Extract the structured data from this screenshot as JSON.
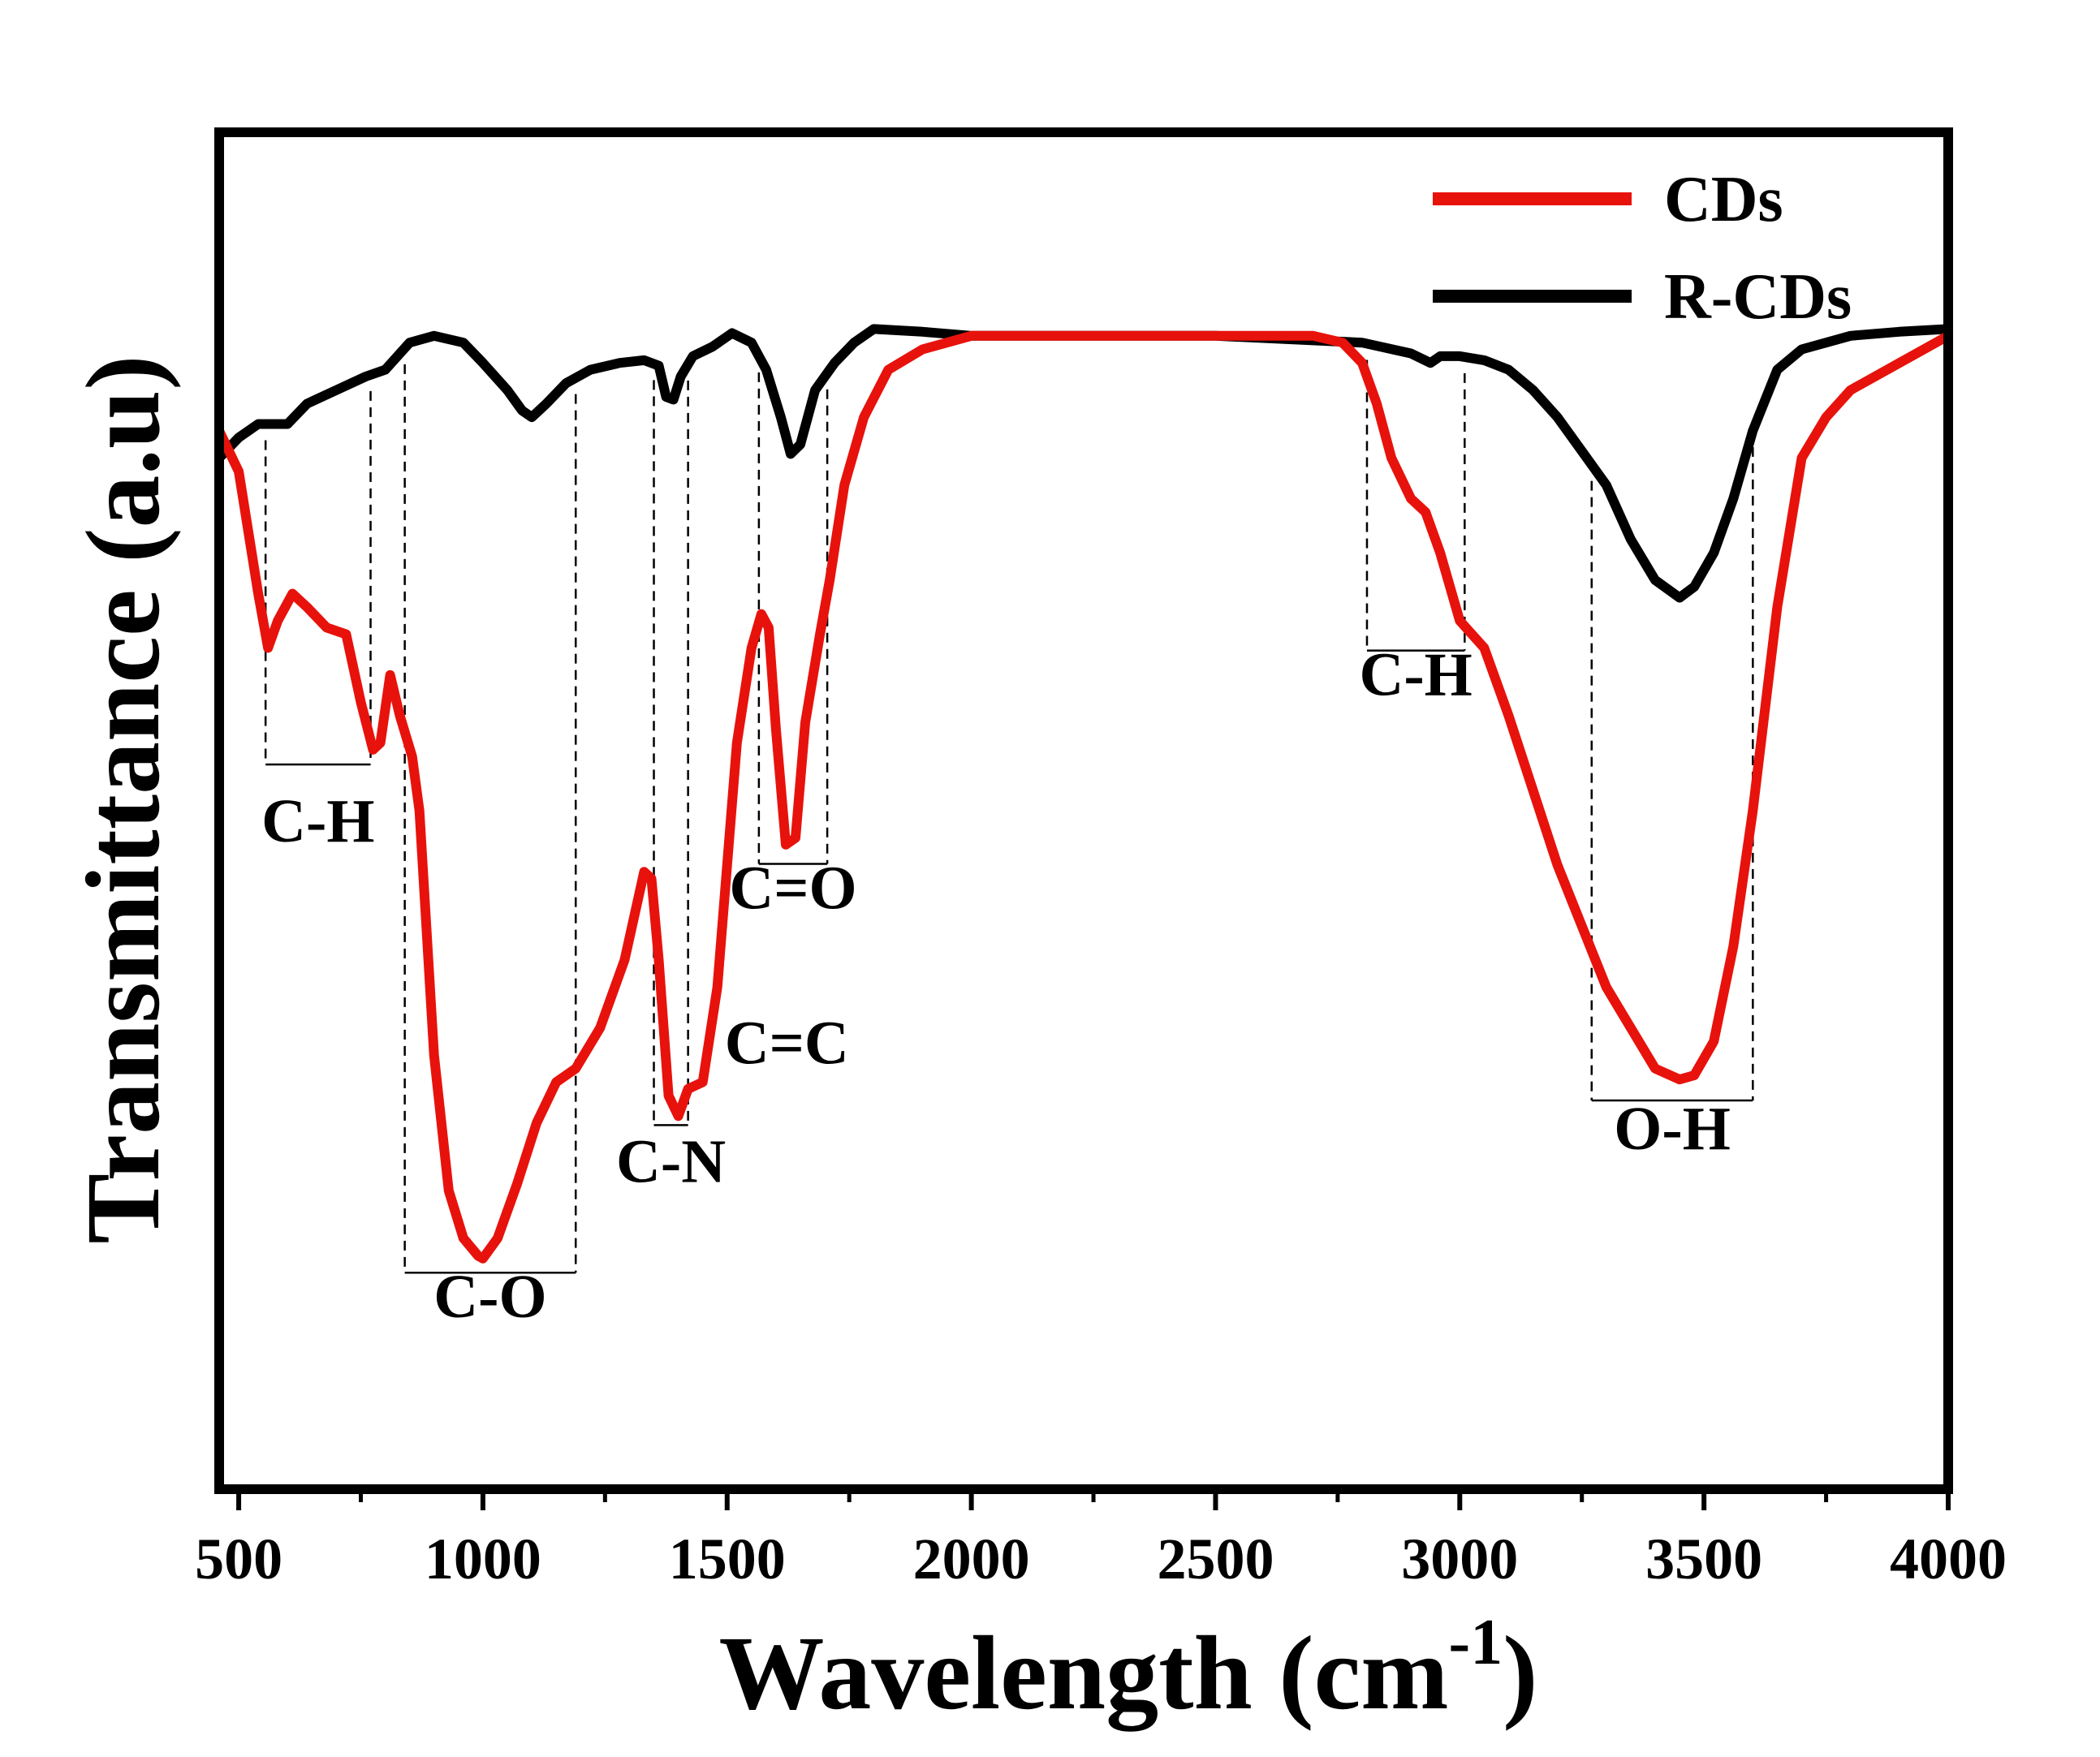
{
  "chart_data": {
    "type": "line",
    "xlabel": "Wavelength (cm",
    "xlabel_sup": "-1",
    "xlabel_close": ")",
    "ylabel": "Transmittance (a.u)",
    "xlim": [
      460,
      4000
    ],
    "ylim": [
      0,
      100
    ],
    "x_ticks": [
      500,
      1000,
      1500,
      2000,
      2500,
      3000,
      3500,
      4000
    ],
    "y_ticks_shown": false,
    "legend_position": "top-right",
    "series": [
      {
        "name": "CDs",
        "color": "#e8120c",
        "points": [
          [
            460,
            78
          ],
          [
            500,
            75
          ],
          [
            540,
            66
          ],
          [
            560,
            62
          ],
          [
            580,
            64
          ],
          [
            610,
            66
          ],
          [
            640,
            65
          ],
          [
            680,
            63.5
          ],
          [
            720,
            63
          ],
          [
            750,
            58
          ],
          [
            775,
            54.5
          ],
          [
            790,
            55
          ],
          [
            810,
            60
          ],
          [
            830,
            57
          ],
          [
            855,
            54
          ],
          [
            870,
            50
          ],
          [
            900,
            32
          ],
          [
            930,
            22
          ],
          [
            960,
            18.5
          ],
          [
            990,
            17.2
          ],
          [
            1000,
            17
          ],
          [
            1030,
            18.5
          ],
          [
            1070,
            22.5
          ],
          [
            1110,
            27
          ],
          [
            1150,
            30
          ],
          [
            1190,
            31
          ],
          [
            1240,
            34
          ],
          [
            1290,
            39
          ],
          [
            1330,
            45.5
          ],
          [
            1345,
            45
          ],
          [
            1360,
            39
          ],
          [
            1380,
            29
          ],
          [
            1400,
            27.5
          ],
          [
            1420,
            29.5
          ],
          [
            1450,
            30
          ],
          [
            1480,
            37
          ],
          [
            1520,
            55
          ],
          [
            1550,
            62
          ],
          [
            1570,
            64.5
          ],
          [
            1585,
            63.5
          ],
          [
            1600,
            56
          ],
          [
            1620,
            47.5
          ],
          [
            1640,
            48
          ],
          [
            1660,
            56.5
          ],
          [
            1690,
            63
          ],
          [
            1710,
            67
          ],
          [
            1740,
            74
          ],
          [
            1780,
            79
          ],
          [
            1830,
            82.5
          ],
          [
            1900,
            84
          ],
          [
            2000,
            85
          ],
          [
            2500,
            85
          ],
          [
            2700,
            85
          ],
          [
            2760,
            84.5
          ],
          [
            2800,
            83
          ],
          [
            2830,
            80
          ],
          [
            2860,
            76
          ],
          [
            2900,
            73
          ],
          [
            2930,
            72
          ],
          [
            2960,
            69
          ],
          [
            3000,
            64
          ],
          [
            3050,
            62
          ],
          [
            3100,
            57
          ],
          [
            3200,
            46
          ],
          [
            3300,
            37
          ],
          [
            3400,
            31
          ],
          [
            3450,
            30.2
          ],
          [
            3480,
            30.5
          ],
          [
            3520,
            33
          ],
          [
            3560,
            40
          ],
          [
            3600,
            50
          ],
          [
            3650,
            65
          ],
          [
            3700,
            76
          ],
          [
            3750,
            79
          ],
          [
            3800,
            81
          ],
          [
            3900,
            83
          ],
          [
            4000,
            85
          ]
        ]
      },
      {
        "name": "R-CDs",
        "color": "#000000",
        "points": [
          [
            460,
            76
          ],
          [
            500,
            77.5
          ],
          [
            540,
            78.5
          ],
          [
            600,
            78.5
          ],
          [
            640,
            80
          ],
          [
            700,
            81
          ],
          [
            760,
            82
          ],
          [
            800,
            82.5
          ],
          [
            850,
            84.5
          ],
          [
            900,
            85
          ],
          [
            960,
            84.5
          ],
          [
            1000,
            83
          ],
          [
            1050,
            81
          ],
          [
            1080,
            79.5
          ],
          [
            1100,
            79
          ],
          [
            1130,
            80
          ],
          [
            1170,
            81.5
          ],
          [
            1220,
            82.5
          ],
          [
            1280,
            83
          ],
          [
            1330,
            83.2
          ],
          [
            1360,
            82.8
          ],
          [
            1375,
            80.5
          ],
          [
            1390,
            80.3
          ],
          [
            1405,
            82
          ],
          [
            1430,
            83.5
          ],
          [
            1470,
            84.2
          ],
          [
            1510,
            85.2
          ],
          [
            1550,
            84.5
          ],
          [
            1580,
            82.5
          ],
          [
            1610,
            79
          ],
          [
            1630,
            76.3
          ],
          [
            1650,
            77
          ],
          [
            1680,
            81
          ],
          [
            1720,
            83
          ],
          [
            1760,
            84.5
          ],
          [
            1800,
            85.5
          ],
          [
            1900,
            85.3
          ],
          [
            2000,
            85
          ],
          [
            2500,
            85
          ],
          [
            2800,
            84.5
          ],
          [
            2900,
            83.7
          ],
          [
            2940,
            83
          ],
          [
            2960,
            83.5
          ],
          [
            3000,
            83.5
          ],
          [
            3050,
            83.2
          ],
          [
            3100,
            82.5
          ],
          [
            3150,
            81
          ],
          [
            3200,
            79
          ],
          [
            3250,
            76.5
          ],
          [
            3300,
            74
          ],
          [
            3350,
            70
          ],
          [
            3400,
            67
          ],
          [
            3450,
            65.7
          ],
          [
            3480,
            66.5
          ],
          [
            3520,
            69
          ],
          [
            3560,
            73
          ],
          [
            3600,
            78
          ],
          [
            3650,
            82.5
          ],
          [
            3700,
            84
          ],
          [
            3800,
            85
          ],
          [
            3900,
            85.3
          ],
          [
            4000,
            85.5
          ]
        ]
      }
    ],
    "annotations": [
      {
        "label": "C-H",
        "x1": 555,
        "x2": 770
      },
      {
        "label": "C-O",
        "x1": 840,
        "x2": 1190
      },
      {
        "label": "C-N",
        "x1": 1350,
        "x2": 1420
      },
      {
        "label": "C=C",
        "x1": 1420,
        "x2": 1470
      },
      {
        "label": "C=O",
        "x1": 1565,
        "x2": 1705
      },
      {
        "label": "C-H",
        "x1": 2810,
        "x2": 3010
      },
      {
        "label": "O-H",
        "x1": 3270,
        "x2": 3600
      }
    ]
  }
}
